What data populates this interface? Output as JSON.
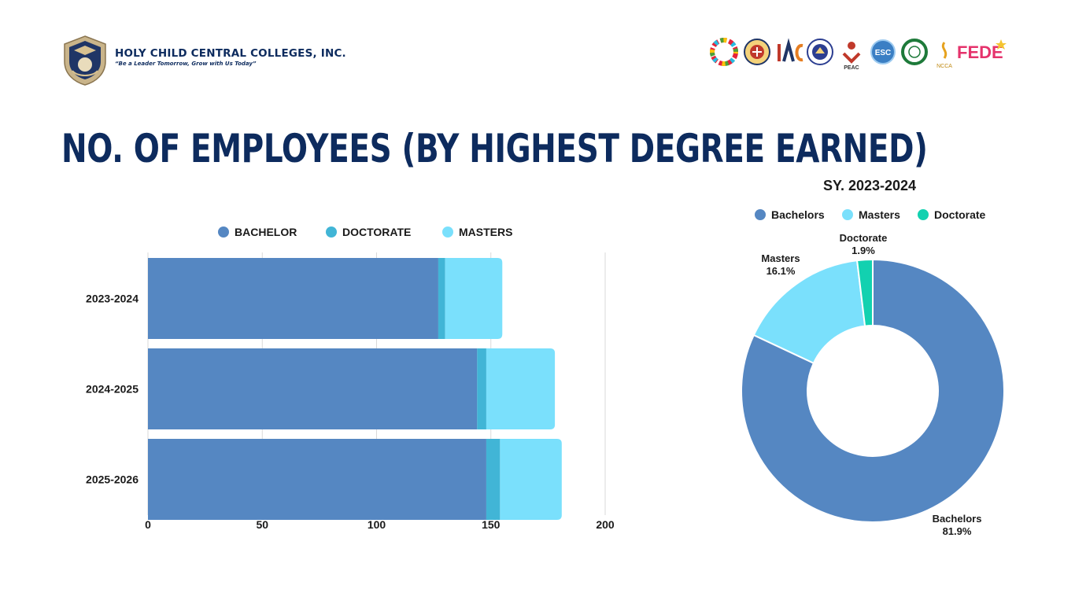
{
  "header": {
    "school_name": "HOLY CHILD CENTRAL COLLEGES, INC.",
    "motto": "“Be a Leader Tomorrow, Grow with Us Today”",
    "partner_logos": [
      {
        "name": "sdg-wheel-icon"
      },
      {
        "name": "seal-icon"
      },
      {
        "name": "iac-logo-icon"
      },
      {
        "name": "deped-seal-icon"
      },
      {
        "name": "peac-logo-icon",
        "label": "PEAC"
      },
      {
        "name": "esc-logo-icon",
        "label": "ESC"
      },
      {
        "name": "green-seal-icon"
      },
      {
        "name": "ncca-logo-icon",
        "label": "NCCA"
      },
      {
        "name": "fede-logo-icon",
        "label": "FEDE"
      }
    ]
  },
  "page_title": "NO. OF EMPLOYEES (BY HIGHEST DEGREE EARNED)",
  "chart_data": [
    {
      "type": "bar",
      "orientation": "horizontal",
      "stacked": true,
      "categories": [
        "2023-2024",
        "2024-2025",
        "2025-2026"
      ],
      "series": [
        {
          "name": "BACHELOR",
          "values": [
            127,
            144,
            148
          ],
          "color": "#5587c2"
        },
        {
          "name": "DOCTORATE",
          "values": [
            3,
            4,
            6
          ],
          "color": "#41b5d6"
        },
        {
          "name": "MASTERS",
          "values": [
            25,
            30,
            27
          ],
          "color": "#7ae0fc"
        }
      ],
      "xlim": [
        0,
        200
      ],
      "xticks": [
        "0",
        "50",
        "100",
        "150",
        "200"
      ],
      "legend": "top",
      "grid": true
    },
    {
      "type": "pie",
      "donut": true,
      "title": "SY. 2023-2024",
      "labels": [
        "Bachelors",
        "Masters",
        "Doctorate"
      ],
      "values": [
        81.9,
        16.1,
        1.9
      ],
      "value_labels": [
        "81.9%",
        "16.1%",
        "1.9%"
      ],
      "colors": [
        "#5587c2",
        "#7ae0fc",
        "#12d1b0"
      ],
      "legend": "top"
    }
  ]
}
